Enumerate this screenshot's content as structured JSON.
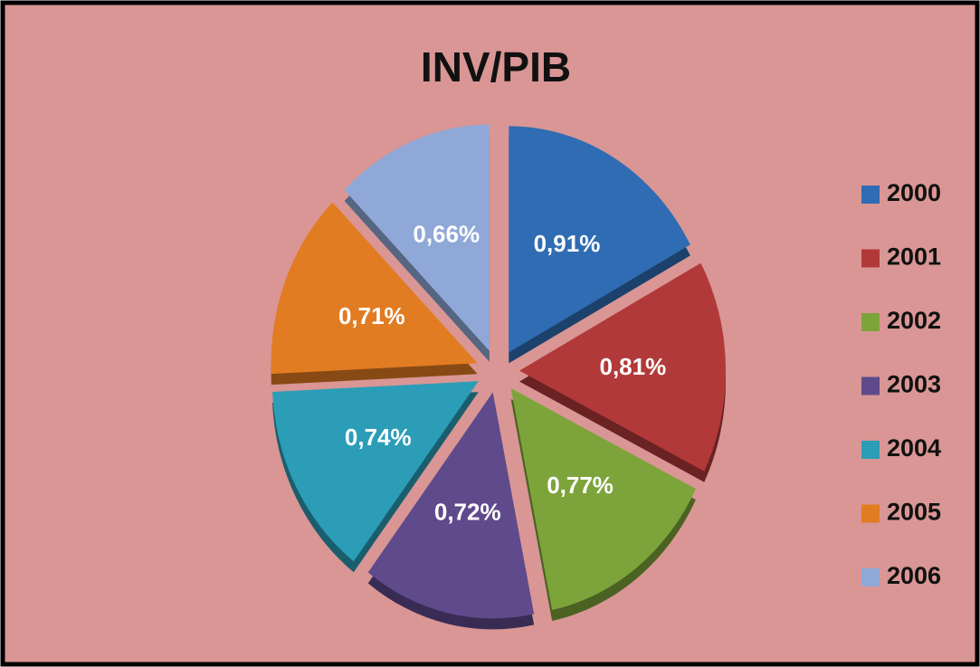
{
  "chart_data": {
    "type": "pie",
    "title": "INV/PIB",
    "categories": [
      "2000",
      "2001",
      "2002",
      "2003",
      "2004",
      "2005",
      "2006"
    ],
    "values": [
      0.91,
      0.81,
      0.77,
      0.72,
      0.74,
      0.71,
      0.66
    ],
    "value_labels": [
      "0,91%",
      "0,81%",
      "0,77%",
      "0,72%",
      "0,74%",
      "0,71%",
      "0,66%"
    ],
    "colors": [
      "#2f6cb3",
      "#b2393a",
      "#7da43b",
      "#5f4a8c",
      "#2b9db7",
      "#e27c22",
      "#8fa8d7"
    ],
    "legend": "right"
  }
}
